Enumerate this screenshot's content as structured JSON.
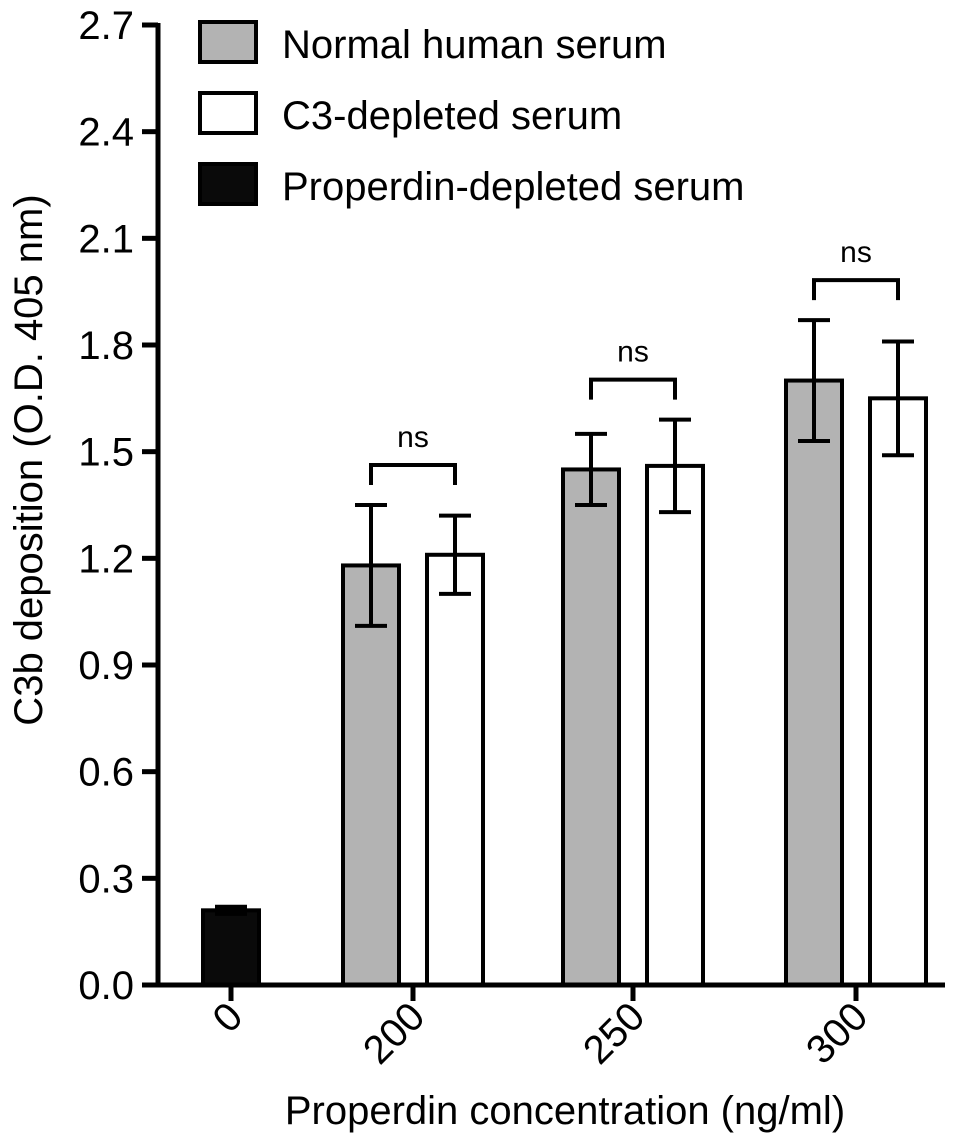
{
  "chart_data": {
    "type": "bar",
    "title": "",
    "xlabel": "Properdin concentration (ng/ml)",
    "ylabel": "C3b deposition (O.D. 405 nm)",
    "ylim": [
      0,
      2.7
    ],
    "yticks": [
      "0.0",
      "0.3",
      "0.6",
      "0.9",
      "1.2",
      "1.5",
      "1.8",
      "2.1",
      "2.4",
      "2.7"
    ],
    "categories": [
      "0",
      "200",
      "250",
      "300"
    ],
    "legend_position": "top-left",
    "grid": false,
    "series": [
      {
        "name": "Normal human serum",
        "color": "#b3b3b3",
        "values": [
          null,
          1.18,
          1.45,
          1.7
        ],
        "errors": [
          null,
          0.17,
          0.1,
          0.17
        ]
      },
      {
        "name": "C3-depleted serum",
        "color": "#ffffff",
        "values": [
          null,
          1.21,
          1.46,
          1.65
        ],
        "errors": [
          null,
          0.11,
          0.13,
          0.16
        ]
      },
      {
        "name": "Properdin-depleted serum",
        "color": "#0a0a0a",
        "values": [
          0.21,
          null,
          null,
          null
        ],
        "errors": [
          0.01,
          null,
          null,
          null
        ]
      }
    ],
    "annotations": [
      {
        "category": "200",
        "text": "ns"
      },
      {
        "category": "250",
        "text": "ns"
      },
      {
        "category": "300",
        "text": "ns"
      }
    ]
  }
}
